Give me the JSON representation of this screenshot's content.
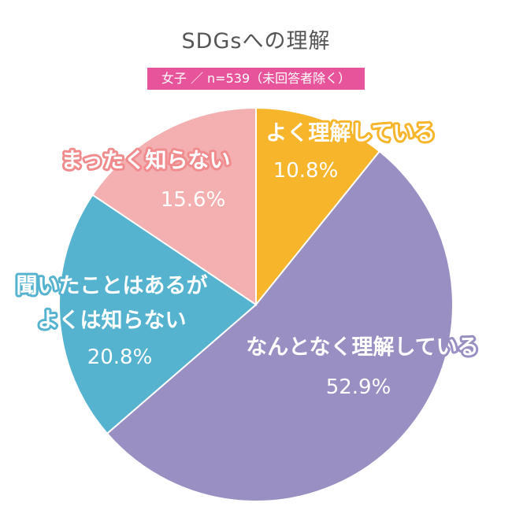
{
  "chart_data": {
    "type": "pie",
    "title": "SDGsへの理解",
    "subtitle": "女子 ／ n=539（未回答者除く）",
    "slices": [
      {
        "label_lines": [
          "よく理解している"
        ],
        "value": 10.8,
        "value_label": "10.8%",
        "color": "#f7b52c"
      },
      {
        "label_lines": [
          "なんとなく理解している"
        ],
        "value": 52.9,
        "value_label": "52.9%",
        "color": "#9a8fc2"
      },
      {
        "label_lines": [
          "聞いたことはあるが",
          "よくは知らない"
        ],
        "value": 20.8,
        "value_label": "20.8%",
        "color": "#55b3cf"
      },
      {
        "label_lines": [
          "まったく知らない"
        ],
        "value": 15.6,
        "value_label": "15.6%",
        "color": "#f4afb0"
      }
    ]
  }
}
